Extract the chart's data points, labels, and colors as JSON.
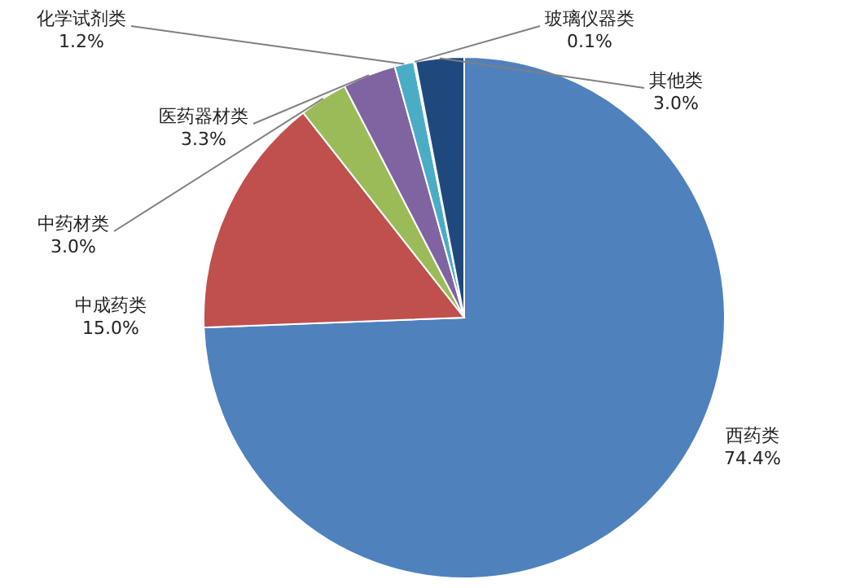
{
  "chart_data": {
    "type": "pie",
    "categories": [
      "西药类",
      "中成药类",
      "中药材类",
      "医药器材类",
      "化学试剂类",
      "玻璃仪器类",
      "其他类"
    ],
    "values": [
      74.4,
      15.0,
      3.0,
      3.3,
      1.2,
      0.1,
      3.0
    ],
    "value_labels": [
      "74.4%",
      "15.0%",
      "3.0%",
      "3.3%",
      "1.2%",
      "0.1%",
      "3.0%"
    ],
    "colors": [
      "#4f81bd",
      "#c0504d",
      "#9bbb59",
      "#8064a2",
      "#4bacc6",
      "#f79646",
      "#1f497d"
    ]
  }
}
